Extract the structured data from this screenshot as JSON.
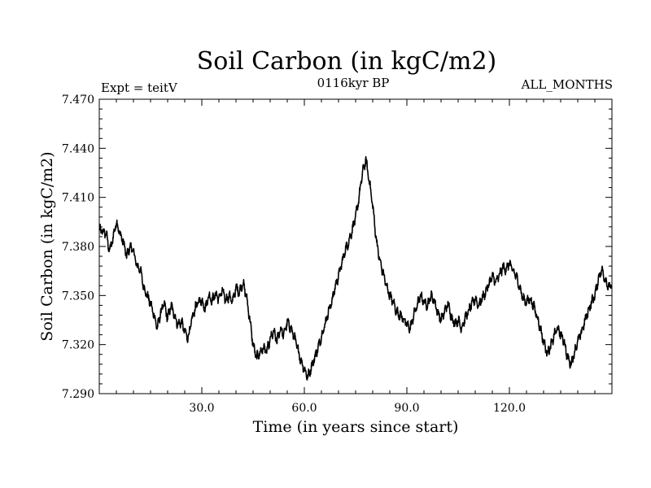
{
  "chart_data": {
    "type": "line",
    "title": "Soil Carbon (in kgC/m2)",
    "left_label": "Expt = teitV",
    "center_label": "0116kyr BP",
    "right_label": "ALL_MONTHS",
    "xlabel": "Time (in years since start)",
    "ylabel": "Soil Carbon (in kgC/m2)",
    "xlim": [
      0,
      150
    ],
    "ylim": [
      7.29,
      7.47
    ],
    "x_ticks": [
      30,
      60,
      90,
      120
    ],
    "x_tick_labels": [
      "30.0",
      "60.0",
      "90.0",
      "120.0"
    ],
    "y_ticks": [
      7.29,
      7.32,
      7.35,
      7.38,
      7.41,
      7.44,
      7.47
    ],
    "y_tick_labels": [
      "7.290",
      "7.320",
      "7.350",
      "7.380",
      "7.410",
      "7.440",
      "7.470"
    ],
    "series": [
      {
        "name": "Soil Carbon",
        "color": "#000000",
        "monthly_amplitude": 0.004,
        "points": [
          [
            0,
            7.39
          ],
          [
            2,
            7.388
          ],
          [
            3,
            7.377
          ],
          [
            4,
            7.385
          ],
          [
            5,
            7.395
          ],
          [
            6,
            7.388
          ],
          [
            7,
            7.383
          ],
          [
            8,
            7.374
          ],
          [
            9,
            7.38
          ],
          [
            10,
            7.377
          ],
          [
            11,
            7.368
          ],
          [
            12,
            7.366
          ],
          [
            13,
            7.355
          ],
          [
            14,
            7.35
          ],
          [
            15,
            7.345
          ],
          [
            16,
            7.338
          ],
          [
            17,
            7.33
          ],
          [
            18,
            7.34
          ],
          [
            19,
            7.345
          ],
          [
            20,
            7.336
          ],
          [
            21,
            7.344
          ],
          [
            22,
            7.338
          ],
          [
            23,
            7.332
          ],
          [
            24,
            7.334
          ],
          [
            25,
            7.328
          ],
          [
            26,
            7.324
          ],
          [
            27,
            7.334
          ],
          [
            28,
            7.342
          ],
          [
            29,
            7.346
          ],
          [
            30,
            7.347
          ],
          [
            31,
            7.342
          ],
          [
            32,
            7.35
          ],
          [
            33,
            7.347
          ],
          [
            34,
            7.351
          ],
          [
            35,
            7.348
          ],
          [
            36,
            7.353
          ],
          [
            37,
            7.347
          ],
          [
            38,
            7.35
          ],
          [
            39,
            7.346
          ],
          [
            40,
            7.355
          ],
          [
            41,
            7.352
          ],
          [
            42,
            7.358
          ],
          [
            43,
            7.35
          ],
          [
            44,
            7.336
          ],
          [
            45,
            7.32
          ],
          [
            46,
            7.312
          ],
          [
            47,
            7.315
          ],
          [
            48,
            7.318
          ],
          [
            49,
            7.316
          ],
          [
            50,
            7.323
          ],
          [
            51,
            7.328
          ],
          [
            52,
            7.322
          ],
          [
            53,
            7.33
          ],
          [
            54,
            7.326
          ],
          [
            55,
            7.334
          ],
          [
            56,
            7.33
          ],
          [
            57,
            7.325
          ],
          [
            58,
            7.318
          ],
          [
            59,
            7.31
          ],
          [
            60,
            7.305
          ],
          [
            61,
            7.3
          ],
          [
            62,
            7.306
          ],
          [
            63,
            7.312
          ],
          [
            64,
            7.318
          ],
          [
            65,
            7.325
          ],
          [
            66,
            7.332
          ],
          [
            67,
            7.34
          ],
          [
            68,
            7.346
          ],
          [
            69,
            7.355
          ],
          [
            70,
            7.362
          ],
          [
            71,
            7.37
          ],
          [
            72,
            7.378
          ],
          [
            73,
            7.383
          ],
          [
            74,
            7.39
          ],
          [
            75,
            7.398
          ],
          [
            76,
            7.41
          ],
          [
            77,
            7.425
          ],
          [
            78,
            7.433
          ],
          [
            79,
            7.42
          ],
          [
            80,
            7.405
          ],
          [
            81,
            7.385
          ],
          [
            82,
            7.372
          ],
          [
            83,
            7.364
          ],
          [
            84,
            7.356
          ],
          [
            85,
            7.35
          ],
          [
            86,
            7.346
          ],
          [
            87,
            7.34
          ],
          [
            88,
            7.338
          ],
          [
            89,
            7.336
          ],
          [
            90,
            7.332
          ],
          [
            91,
            7.33
          ],
          [
            92,
            7.338
          ],
          [
            93,
            7.344
          ],
          [
            94,
            7.35
          ],
          [
            95,
            7.346
          ],
          [
            96,
            7.344
          ],
          [
            97,
            7.35
          ],
          [
            98,
            7.347
          ],
          [
            99,
            7.34
          ],
          [
            100,
            7.335
          ],
          [
            101,
            7.34
          ],
          [
            102,
            7.345
          ],
          [
            103,
            7.337
          ],
          [
            104,
            7.333
          ],
          [
            105,
            7.335
          ],
          [
            106,
            7.33
          ],
          [
            107,
            7.336
          ],
          [
            108,
            7.34
          ],
          [
            109,
            7.345
          ],
          [
            110,
            7.348
          ],
          [
            111,
            7.344
          ],
          [
            112,
            7.348
          ],
          [
            113,
            7.352
          ],
          [
            114,
            7.357
          ],
          [
            115,
            7.362
          ],
          [
            116,
            7.358
          ],
          [
            117,
            7.362
          ],
          [
            118,
            7.367
          ],
          [
            119,
            7.366
          ],
          [
            120,
            7.37
          ],
          [
            121,
            7.365
          ],
          [
            122,
            7.362
          ],
          [
            123,
            7.355
          ],
          [
            124,
            7.348
          ],
          [
            125,
            7.346
          ],
          [
            126,
            7.348
          ],
          [
            127,
            7.344
          ],
          [
            128,
            7.338
          ],
          [
            129,
            7.33
          ],
          [
            130,
            7.322
          ],
          [
            131,
            7.315
          ],
          [
            132,
            7.318
          ],
          [
            133,
            7.325
          ],
          [
            134,
            7.33
          ],
          [
            135,
            7.326
          ],
          [
            136,
            7.322
          ],
          [
            137,
            7.312
          ],
          [
            138,
            7.308
          ],
          [
            139,
            7.315
          ],
          [
            140,
            7.322
          ],
          [
            141,
            7.327
          ],
          [
            142,
            7.334
          ],
          [
            143,
            7.34
          ],
          [
            144,
            7.346
          ],
          [
            145,
            7.35
          ],
          [
            146,
            7.36
          ],
          [
            147,
            7.366
          ],
          [
            148,
            7.36
          ],
          [
            149,
            7.355
          ],
          [
            150,
            7.356
          ]
        ]
      }
    ]
  }
}
